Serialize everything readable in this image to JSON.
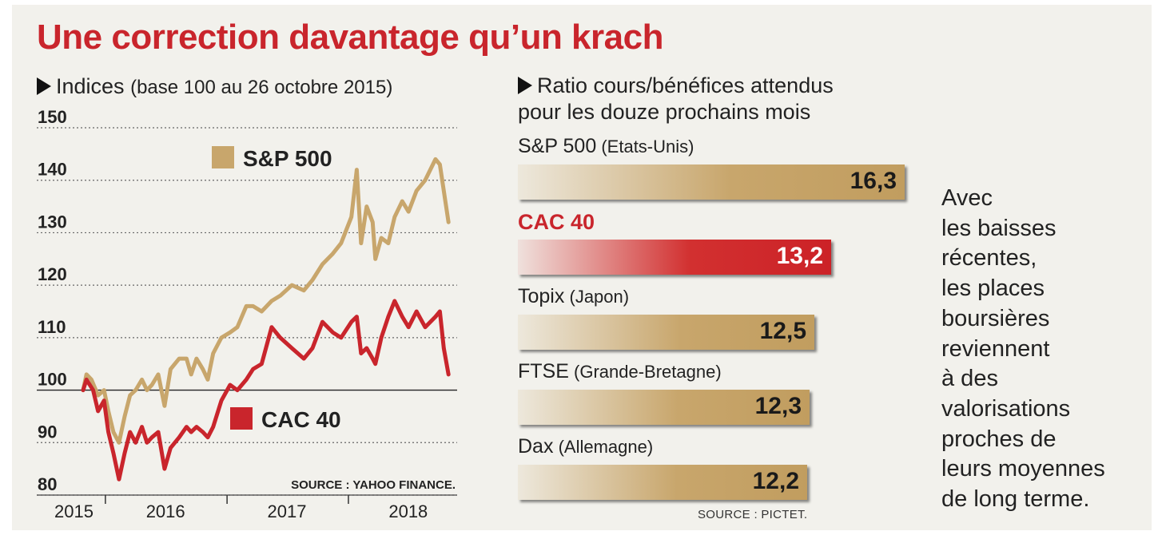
{
  "title": "Une correction davantage qu’un krach",
  "left_panel": {
    "heading_main": "Indices",
    "heading_note": "(base 100 au 26 octobre 2015)",
    "source": "SOURCE : YAHOO FINANCE."
  },
  "right_panel": {
    "heading_line1": "Ratio cours/bénéfices attendus",
    "heading_line2": "pour les douze prochains mois",
    "source": "SOURCE : PICTET."
  },
  "side_text": "Avec\nles baisses\nrécentes,\nles places\nboursières\nreviennent\nà des\nvalorisations\nproches de\nleurs moyennes\nde long terme.",
  "colors": {
    "title": "#c9252c",
    "sp500": "#c8a66c",
    "cac40": "#c9252c",
    "background": "#f2f1ec"
  },
  "chart_data": [
    {
      "type": "line",
      "ylim": [
        80,
        150
      ],
      "yticks": [
        80,
        90,
        100,
        110,
        120,
        130,
        140,
        150
      ],
      "xlim": [
        "2015-10-26",
        "2018-10-31"
      ],
      "xticks": [
        {
          "label": "2015",
          "date": "2015-10-26"
        },
        {
          "label": "2016",
          "date": "2016-06-30"
        },
        {
          "label": "2017",
          "date": "2017-06-30"
        },
        {
          "label": "2018",
          "date": "2018-06-30"
        }
      ],
      "year_separators": [
        "2016-01-01",
        "2017-01-01",
        "2018-01-01"
      ],
      "reference_line": 100,
      "grid": "horizontal dotted",
      "series": [
        {
          "name": "S&P 500",
          "color": "#c8a66c",
          "points": [
            [
              "2015-10-26",
              100
            ],
            [
              "2015-11-05",
              103
            ],
            [
              "2015-11-20",
              102
            ],
            [
              "2015-12-10",
              99
            ],
            [
              "2015-12-28",
              100
            ],
            [
              "2016-01-10",
              96
            ],
            [
              "2016-01-25",
              92
            ],
            [
              "2016-02-11",
              90
            ],
            [
              "2016-02-28",
              95
            ],
            [
              "2016-03-15",
              99
            ],
            [
              "2016-04-01",
              100
            ],
            [
              "2016-04-20",
              102
            ],
            [
              "2016-05-05",
              100
            ],
            [
              "2016-05-20",
              101
            ],
            [
              "2016-06-08",
              103
            ],
            [
              "2016-06-27",
              97
            ],
            [
              "2016-07-15",
              104
            ],
            [
              "2016-08-10",
              106
            ],
            [
              "2016-09-01",
              106
            ],
            [
              "2016-09-15",
              103
            ],
            [
              "2016-10-01",
              106
            ],
            [
              "2016-10-20",
              104
            ],
            [
              "2016-11-04",
              102
            ],
            [
              "2016-11-20",
              107
            ],
            [
              "2016-12-15",
              110
            ],
            [
              "2017-01-10",
              111
            ],
            [
              "2017-02-01",
              112
            ],
            [
              "2017-02-28",
              116
            ],
            [
              "2017-03-20",
              116
            ],
            [
              "2017-04-15",
              115
            ],
            [
              "2017-05-15",
              117
            ],
            [
              "2017-06-10",
              118
            ],
            [
              "2017-07-15",
              120
            ],
            [
              "2017-08-20",
              119
            ],
            [
              "2017-09-15",
              121
            ],
            [
              "2017-10-15",
              124
            ],
            [
              "2017-11-15",
              126
            ],
            [
              "2017-12-10",
              128
            ],
            [
              "2018-01-10",
              133
            ],
            [
              "2018-01-26",
              142
            ],
            [
              "2018-02-08",
              128
            ],
            [
              "2018-02-25",
              135
            ],
            [
              "2018-03-15",
              132
            ],
            [
              "2018-03-23",
              125
            ],
            [
              "2018-04-10",
              129
            ],
            [
              "2018-05-01",
              128
            ],
            [
              "2018-05-20",
              133
            ],
            [
              "2018-06-12",
              136
            ],
            [
              "2018-07-01",
              134
            ],
            [
              "2018-07-25",
              138
            ],
            [
              "2018-08-20",
              140
            ],
            [
              "2018-09-20",
              144
            ],
            [
              "2018-10-03",
              143
            ],
            [
              "2018-10-15",
              138
            ],
            [
              "2018-10-29",
              132
            ]
          ]
        },
        {
          "name": "CAC 40",
          "color": "#c9252c",
          "points": [
            [
              "2015-10-26",
              100
            ],
            [
              "2015-11-05",
              102
            ],
            [
              "2015-11-25",
              100
            ],
            [
              "2015-12-10",
              96
            ],
            [
              "2015-12-28",
              98
            ],
            [
              "2016-01-10",
              92
            ],
            [
              "2016-01-25",
              88
            ],
            [
              "2016-02-11",
              83
            ],
            [
              "2016-02-28",
              88
            ],
            [
              "2016-03-15",
              92
            ],
            [
              "2016-04-01",
              90
            ],
            [
              "2016-04-20",
              93
            ],
            [
              "2016-05-05",
              90
            ],
            [
              "2016-05-20",
              91
            ],
            [
              "2016-06-08",
              92
            ],
            [
              "2016-06-27",
              85
            ],
            [
              "2016-07-15",
              89
            ],
            [
              "2016-08-10",
              91
            ],
            [
              "2016-09-01",
              93
            ],
            [
              "2016-09-15",
              92
            ],
            [
              "2016-10-01",
              93
            ],
            [
              "2016-10-20",
              92
            ],
            [
              "2016-11-04",
              91
            ],
            [
              "2016-11-20",
              93
            ],
            [
              "2016-12-15",
              98
            ],
            [
              "2017-01-10",
              101
            ],
            [
              "2017-02-01",
              100
            ],
            [
              "2017-02-28",
              102
            ],
            [
              "2017-03-20",
              104
            ],
            [
              "2017-04-15",
              105
            ],
            [
              "2017-05-15",
              112
            ],
            [
              "2017-06-10",
              110
            ],
            [
              "2017-07-15",
              108
            ],
            [
              "2017-08-20",
              106
            ],
            [
              "2017-09-15",
              108
            ],
            [
              "2017-10-15",
              113
            ],
            [
              "2017-11-15",
              111
            ],
            [
              "2017-12-10",
              110
            ],
            [
              "2018-01-10",
              113
            ],
            [
              "2018-01-26",
              114
            ],
            [
              "2018-02-08",
              107
            ],
            [
              "2018-02-25",
              108
            ],
            [
              "2018-03-15",
              106
            ],
            [
              "2018-03-23",
              105
            ],
            [
              "2018-04-10",
              110
            ],
            [
              "2018-05-01",
              114
            ],
            [
              "2018-05-20",
              117
            ],
            [
              "2018-06-12",
              114
            ],
            [
              "2018-07-01",
              112
            ],
            [
              "2018-07-25",
              115
            ],
            [
              "2018-08-20",
              112
            ],
            [
              "2018-09-20",
              114
            ],
            [
              "2018-10-03",
              115
            ],
            [
              "2018-10-15",
              108
            ],
            [
              "2018-10-29",
              103
            ]
          ]
        }
      ]
    },
    {
      "type": "bar",
      "orientation": "horizontal",
      "xlim": [
        0,
        16.3
      ],
      "bars": [
        {
          "name": "S&P 500",
          "note": "(Etats-Unis)",
          "value": 16.3,
          "label": "16,3",
          "color": "#c8a66c",
          "highlight": false
        },
        {
          "name": "CAC 40",
          "note": "",
          "value": 13.2,
          "label": "13,2",
          "color": "#c9252c",
          "highlight": true
        },
        {
          "name": "Topix",
          "note": "(Japon)",
          "value": 12.5,
          "label": "12,5",
          "color": "#c8a66c",
          "highlight": false
        },
        {
          "name": "FTSE",
          "note": "(Grande-Bretagne)",
          "value": 12.3,
          "label": "12,3",
          "color": "#c8a66c",
          "highlight": false
        },
        {
          "name": "Dax",
          "note": "(Allemagne)",
          "value": 12.2,
          "label": "12,2",
          "color": "#c8a66c",
          "highlight": false
        }
      ]
    }
  ]
}
